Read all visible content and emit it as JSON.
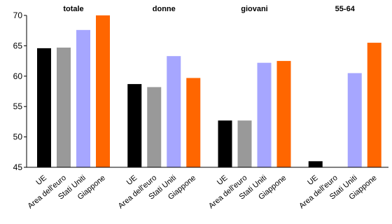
{
  "chart_data": {
    "type": "bar",
    "groups": [
      "totale",
      "donne",
      "giovani",
      "55-64"
    ],
    "categories": [
      "UE",
      "Area dell'euro",
      "Stati Uniti",
      "Giappone"
    ],
    "colors": [
      "#000000",
      "#999999",
      "#a6a6ff",
      "#ff6600"
    ],
    "values": [
      [
        64.6,
        64.7,
        67.6,
        70.0
      ],
      [
        58.7,
        58.2,
        63.3,
        59.7
      ],
      [
        52.7,
        52.7,
        62.2,
        62.5
      ],
      [
        46.0,
        null,
        60.5,
        65.5
      ]
    ],
    "ylim": [
      45,
      70
    ],
    "yticks": [
      45,
      50,
      55,
      60,
      65,
      70
    ],
    "grid": false,
    "legend": "none"
  }
}
